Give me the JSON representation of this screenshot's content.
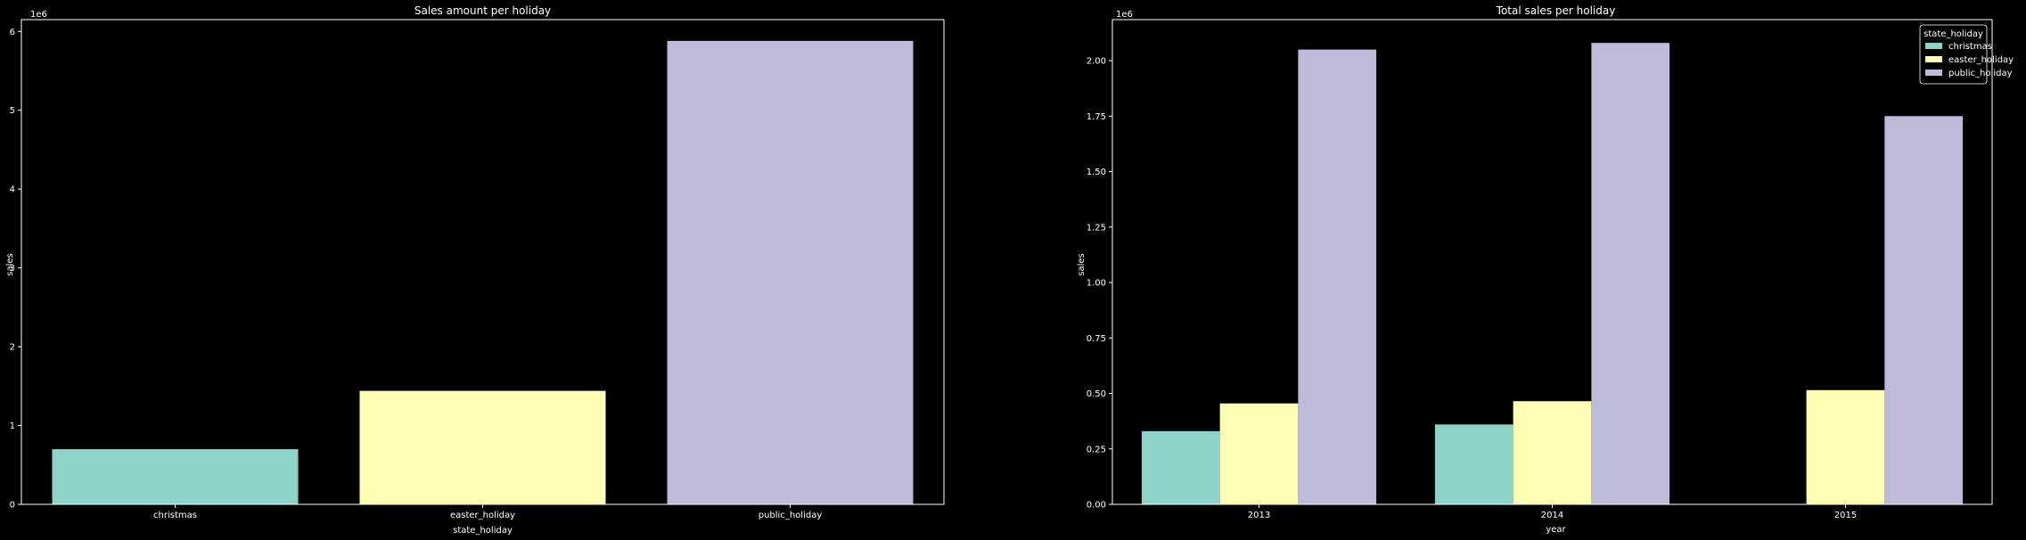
{
  "colors": {
    "background": "#000000",
    "foreground": "#ffffff",
    "christmas": "#8dd3c7",
    "easter_holiday": "#ffffb3",
    "public_holiday": "#bebada"
  },
  "chart_data": [
    {
      "type": "bar",
      "title": "Sales amount per holiday",
      "xlabel": "state_holiday",
      "ylabel": "sales",
      "y_offset_label": "1e6",
      "categories": [
        "christmas",
        "easter_holiday",
        "public_holiday"
      ],
      "values": [
        700000,
        1440000,
        5880000
      ],
      "bar_colors": [
        "#8dd3c7",
        "#ffffb3",
        "#bebada"
      ],
      "ylim": [
        0,
        6150000
      ],
      "yticks": [
        0,
        1000000,
        2000000,
        3000000,
        4000000,
        5000000,
        6000000
      ],
      "ytick_labels": [
        "0",
        "1",
        "2",
        "3",
        "4",
        "5",
        "6"
      ],
      "grid": false
    },
    {
      "type": "bar",
      "title": "Total sales per holiday",
      "xlabel": "year",
      "ylabel": "sales",
      "y_offset_label": "1e6",
      "categories": [
        "2013",
        "2014",
        "2015"
      ],
      "series": [
        {
          "name": "christmas",
          "values": [
            330000,
            360000,
            null
          ],
          "color": "#8dd3c7"
        },
        {
          "name": "easter_holiday",
          "values": [
            455000,
            465000,
            515000
          ],
          "color": "#ffffb3"
        },
        {
          "name": "public_holiday",
          "values": [
            2050000,
            2080000,
            1750000
          ],
          "color": "#bebada"
        }
      ],
      "ylim": [
        0,
        2185000
      ],
      "yticks": [
        0,
        250000,
        500000,
        750000,
        1000000,
        1250000,
        1500000,
        1750000,
        2000000
      ],
      "ytick_labels": [
        "0.00",
        "0.25",
        "0.50",
        "0.75",
        "1.00",
        "1.25",
        "1.50",
        "1.75",
        "2.00"
      ],
      "legend": {
        "title": "state_holiday",
        "position": "top-right"
      },
      "grid": false
    }
  ]
}
